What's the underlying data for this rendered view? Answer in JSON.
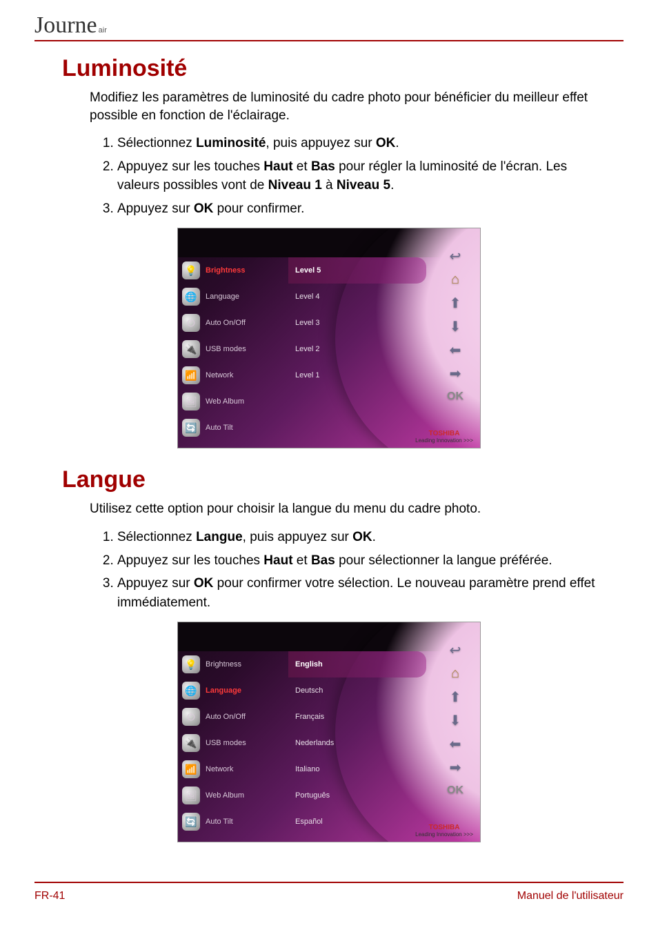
{
  "logo": {
    "name": "Journe",
    "sub": "air"
  },
  "colors": {
    "accent": "#a00000",
    "body_text": "#000000",
    "device_bg_from": "#1a0a1a",
    "device_bg_to": "#c23aa5",
    "menu_active": "#ff3a3a",
    "brand_red": "#cc2a2a"
  },
  "section1": {
    "title": "Luminosité",
    "intro": "Modifiez les paramètres de luminosité du cadre photo pour bénéficier du meilleur effet possible en fonction de l'éclairage.",
    "steps": [
      {
        "pre": "Sélectionnez ",
        "b1": "Luminosité",
        "mid": ", puis appuyez sur ",
        "b2": "OK",
        "post": "."
      },
      {
        "pre": "Appuyez sur les touches ",
        "b1": "Haut",
        "mid1": " et ",
        "b2": "Bas",
        "mid2": " pour régler la luminosité de l'écran. Les valeurs possibles vont de ",
        "b3": "Niveau 1",
        "mid3": " à ",
        "b4": "Niveau 5",
        "post": "."
      },
      {
        "pre": "Appuyez sur ",
        "b1": "OK",
        "post": " pour confirmer."
      }
    ]
  },
  "section2": {
    "title": "Langue",
    "intro": "Utilisez cette option pour choisir la langue du menu du cadre photo.",
    "steps": [
      {
        "pre": "Sélectionnez ",
        "b1": "Langue",
        "mid": ", puis appuyez sur ",
        "b2": "OK",
        "post": "."
      },
      {
        "pre": "Appuyez sur les touches ",
        "b1": "Haut",
        "mid1": " et ",
        "b2": "Bas",
        "post": " pour sélectionner la langue préférée."
      },
      {
        "pre": "Appuyez sur ",
        "b1": "OK",
        "post": " pour confirmer votre sélection. Le nouveau paramètre prend effet immédiatement."
      }
    ]
  },
  "device_menu": {
    "items": [
      {
        "label": "Brightness",
        "icon": "💡"
      },
      {
        "label": "Language",
        "icon": "🌐"
      },
      {
        "label": "Auto On/Off",
        "icon": "⏻"
      },
      {
        "label": "USB modes",
        "icon": "🔌"
      },
      {
        "label": "Network",
        "icon": "📶"
      },
      {
        "label": "Web Album",
        "icon": "🖼"
      },
      {
        "label": "Auto Tilt",
        "icon": "🔄"
      }
    ]
  },
  "device1": {
    "active_index": 0,
    "values": [
      "Level 5",
      "Level 4",
      "Level 3",
      "Level 2",
      "Level 1"
    ],
    "selected_value_index": 0
  },
  "device2": {
    "active_index": 1,
    "values": [
      "English",
      "Deutsch",
      "Français",
      "Nederlands",
      "Italiano",
      "Português",
      "Español"
    ],
    "selected_value_index": 0
  },
  "device_nav": {
    "back": "↩",
    "home": "⌂",
    "up": "⬆",
    "down": "⬇",
    "left": "⬅",
    "right": "➡",
    "ok": "OK"
  },
  "device_brand": {
    "name": "TOSHIBA",
    "tagline": "Leading Innovation >>>"
  },
  "footer": {
    "left": "FR-41",
    "right": "Manuel de l'utilisateur"
  }
}
